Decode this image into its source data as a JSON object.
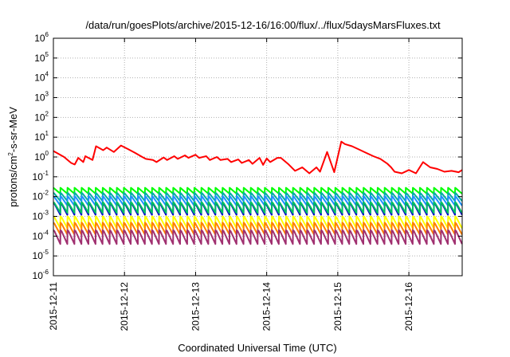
{
  "chart_data": {
    "type": "line",
    "title": "/data/run/goesPlots/archive/2015-12-16/16:00/flux/../flux/5daysMarsFluxes.txt",
    "xlabel": "Coordinated Universal Time (UTC)",
    "ylabel": {
      "prefix": "protons/cm",
      "sup": "2",
      "suffix": "-s-sr-MeV"
    },
    "yscale": "log",
    "ylim_exponents": [
      -6,
      6
    ],
    "y_ticks": [
      {
        "base": "10",
        "exp": "6"
      },
      {
        "base": "10",
        "exp": "5"
      },
      {
        "base": "10",
        "exp": "4"
      },
      {
        "base": "10",
        "exp": "3"
      },
      {
        "base": "10",
        "exp": "2"
      },
      {
        "base": "10",
        "exp": "1"
      },
      {
        "base": "10",
        "exp": "0"
      },
      {
        "base": "10",
        "exp": "-1"
      },
      {
        "base": "10",
        "exp": "-2"
      },
      {
        "base": "10",
        "exp": "-3"
      },
      {
        "base": "10",
        "exp": "-4"
      },
      {
        "base": "10",
        "exp": "-5"
      },
      {
        "base": "10",
        "exp": "-6"
      }
    ],
    "x_ticks": [
      "2015-12-11",
      "2015-12-12",
      "2015-12-13",
      "2015-12-14",
      "2015-12-15",
      "2015-12-16"
    ],
    "xlim_days": [
      0,
      5.75
    ],
    "grid": true,
    "series": [
      {
        "color": "#ff0000",
        "x": [
          0,
          0.15,
          0.25,
          0.3,
          0.35,
          0.42,
          0.45,
          0.55,
          0.6,
          0.7,
          0.75,
          0.85,
          0.95,
          1.05,
          1.15,
          1.25,
          1.3,
          1.4,
          1.45,
          1.55,
          1.6,
          1.7,
          1.75,
          1.85,
          1.9,
          2.0,
          2.05,
          2.15,
          2.2,
          2.3,
          2.35,
          2.45,
          2.5,
          2.6,
          2.65,
          2.75,
          2.8,
          2.9,
          2.95,
          3.0,
          3.05,
          3.15,
          3.2,
          3.3,
          3.4,
          3.5,
          3.6,
          3.7,
          3.75,
          3.85,
          3.95,
          4.05,
          4.1,
          4.2,
          4.3,
          4.4,
          4.5,
          4.6,
          4.7,
          4.75,
          4.8,
          4.9,
          5.0,
          5.1,
          5.2,
          5.3,
          5.4,
          5.5,
          5.6,
          5.7,
          5.75
        ],
        "y": [
          2.0,
          1.0,
          0.5,
          0.42,
          0.9,
          0.55,
          1.1,
          0.7,
          3.5,
          2.2,
          3.0,
          1.8,
          3.8,
          2.5,
          1.6,
          1.0,
          0.8,
          0.7,
          0.55,
          0.95,
          0.7,
          1.1,
          0.8,
          1.2,
          0.9,
          1.3,
          0.9,
          1.1,
          0.7,
          1.0,
          0.7,
          0.8,
          0.55,
          0.75,
          0.5,
          0.7,
          0.45,
          0.9,
          0.4,
          0.85,
          0.55,
          0.9,
          0.9,
          0.45,
          0.2,
          0.3,
          0.15,
          0.3,
          0.18,
          1.8,
          0.17,
          6.0,
          4.5,
          3.5,
          2.4,
          1.6,
          1.1,
          0.8,
          0.45,
          0.3,
          0.18,
          0.15,
          0.22,
          0.15,
          0.55,
          0.3,
          0.25,
          0.18,
          0.2,
          0.17,
          0.22
        ]
      },
      {
        "color": "#00ff00",
        "base": 0.014,
        "amp": 2.0,
        "spikes": 58
      },
      {
        "color": "#00b0a0",
        "base": 0.006,
        "amp": 2.6,
        "spikes": 58
      },
      {
        "color": "#1e90ff",
        "base": 0.0035,
        "amp": 3.0,
        "spikes": 58
      },
      {
        "color": "#0000cc",
        "base": 0.0012,
        "amp": 4.0,
        "spikes": 58
      },
      {
        "color": "#00c060",
        "base": 0.0015,
        "amp": 3.5,
        "spikes": 58
      },
      {
        "color": "#ffff00",
        "base": 0.00025,
        "amp": 4.0,
        "spikes": 58
      },
      {
        "color": "#ff8000",
        "base": 0.00012,
        "amp": 4.0,
        "spikes": 58
      },
      {
        "color": "#a03070",
        "base": 4e-05,
        "amp": 5.0,
        "spikes": 58
      }
    ]
  }
}
